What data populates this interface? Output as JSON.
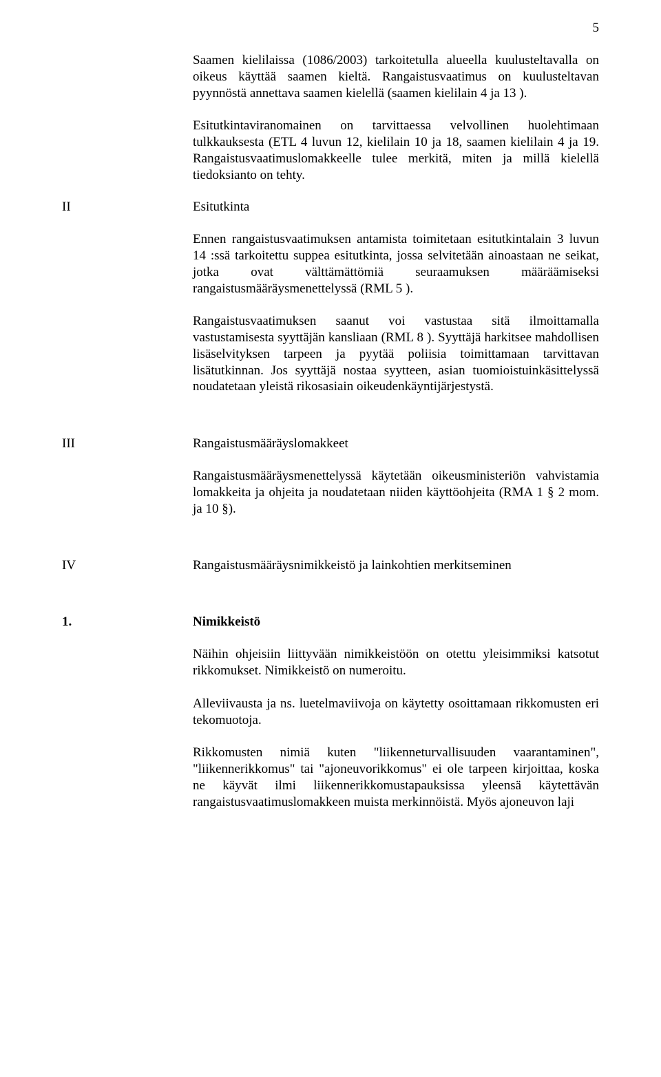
{
  "pageNumber": "5",
  "para1": "Saamen kielilaissa (1086/2003) tarkoitetulla alueella kuulusteltavalla on oikeus käyttää saamen kieltä. Rangaistusvaatimus on kuulusteltavan pyynnöstä annettava saamen kielellä (saamen kielilain 4 ja 13 ).",
  "para2": "Esitutkintaviranomainen on tarvittaessa velvollinen huolehtimaan tulkkauksesta (ETL 4 luvun 12, kielilain 10 ja 18, saamen kielilain 4 ja 19. Rangaistusvaatimuslomakkeelle tulee merkitä, miten ja millä kielellä tiedoksianto on tehty.",
  "sec2": {
    "roman": "II",
    "title": "Esitutkinta",
    "p1": "Ennen rangaistusvaatimuksen antamista toimitetaan esitutkintalain 3 luvun 14 :ssä tarkoitettu suppea esitutkinta, jossa selvitetään ainoastaan ne seikat, jotka ovat välttämättömiä seuraamuksen määräämiseksi rangaistusmääräysmenettelyssä (RML 5 ).",
    "p2": "Rangaistusvaatimuksen saanut voi vastustaa sitä ilmoittamalla vastustamisesta syyttäjän kansliaan (RML 8 ). Syyttäjä harkitsee mahdollisen lisäselvityksen tarpeen ja pyytää poliisia toimittamaan tarvittavan lisätutkinnan. Jos syyttäjä nostaa syytteen, asian tuomioistuinkäsittelyssä noudatetaan yleistä rikosasiain oikeudenkäyntijärjestystä."
  },
  "sec3": {
    "roman": "III",
    "title": "Rangaistusmääräyslomakkeet",
    "p1": "Rangaistusmääräysmenettelyssä käytetään oikeusministeriön vahvistamia lomakkeita ja ohjeita ja noudatetaan niiden käyttöohjeita (RMA 1 § 2 mom. ja 10 §)."
  },
  "sec4": {
    "roman": "IV",
    "title": "Rangaistusmääräysnimikkeistö ja lainkohtien merkitseminen"
  },
  "sec5": {
    "roman": "1.",
    "title": "Nimikkeistö",
    "p1": "Näihin ohjeisiin liittyvään nimikkeistöön on otettu yleisimmiksi katsotut rikkomukset. Nimikkeistö on numeroitu.",
    "p2": "Alleviivausta ja ns. luetelmaviivoja on käytetty osoittamaan rikkomusten eri tekomuotoja.",
    "p3": "Rikkomusten nimiä kuten \"liikenneturvallisuuden vaarantaminen\", \"liikennerikkomus\" tai \"ajoneuvorikkomus\" ei ole tarpeen kirjoittaa, koska ne käyvät ilmi liikennerikkomustapauksissa yleensä käytettävän rangaistusvaatimuslomakkeen muista merkinnöistä. Myös ajoneuvon laji"
  }
}
